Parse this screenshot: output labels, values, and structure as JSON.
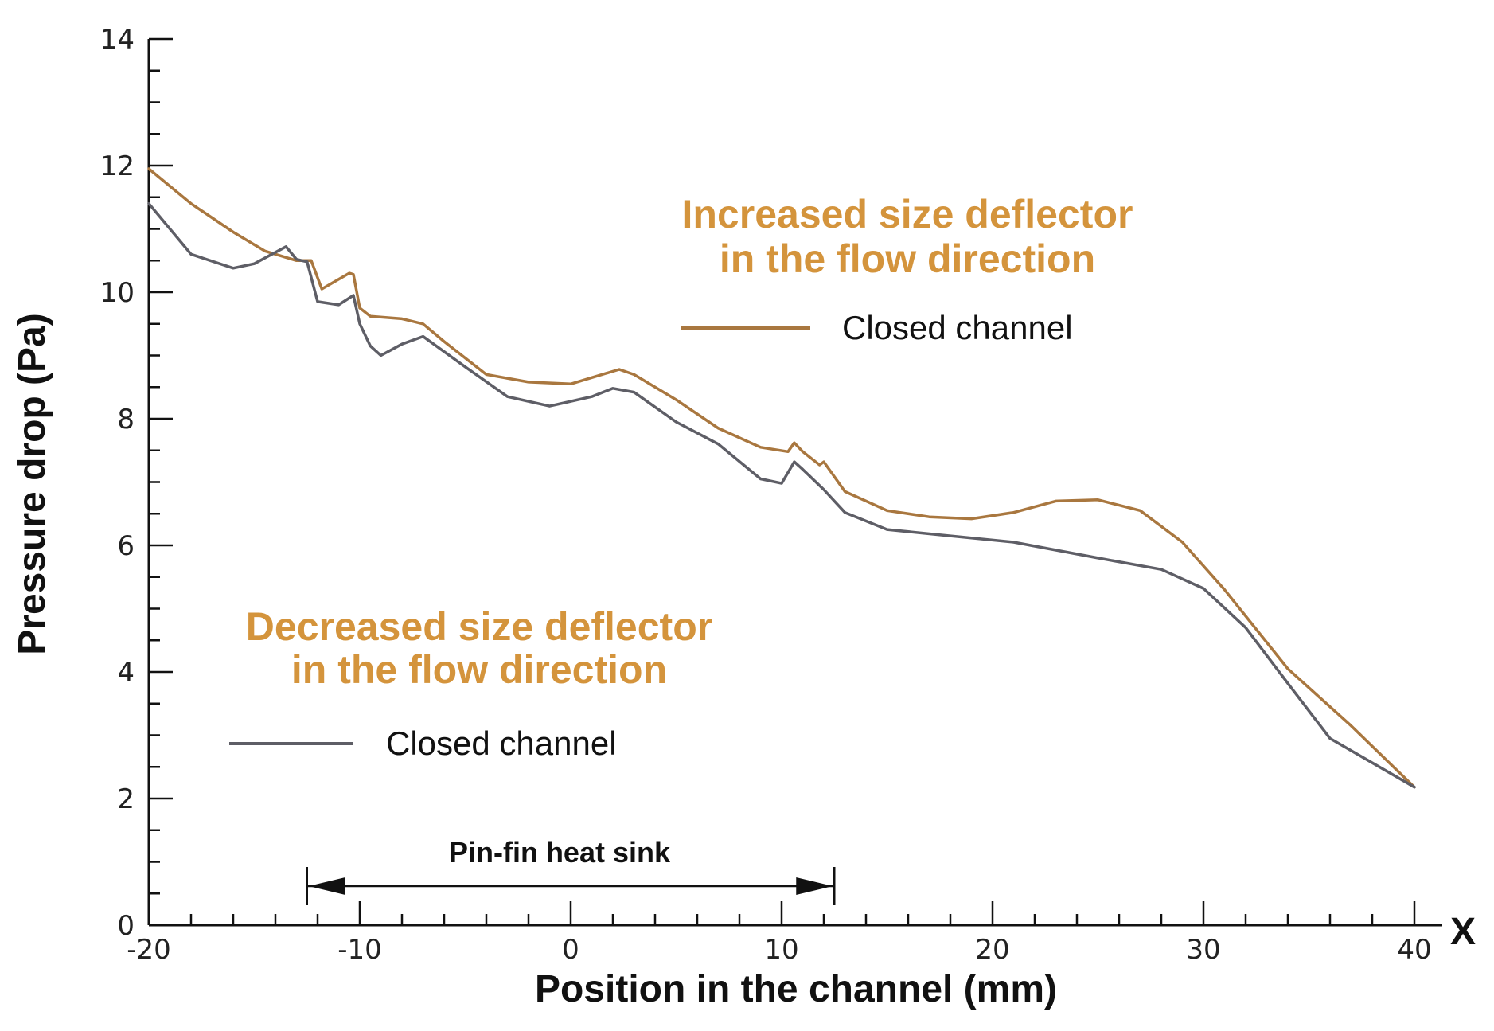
{
  "chart_data": {
    "type": "line",
    "xlabel": "Position in the channel (mm)",
    "ylabel": "Pressure drop (Pa)",
    "x_axis_marker": "X",
    "xlim": [
      -20,
      40
    ],
    "ylim": [
      0,
      14
    ],
    "x_ticks": [
      -20,
      -10,
      0,
      10,
      20,
      30,
      40
    ],
    "y_ticks": [
      0,
      2,
      4,
      6,
      8,
      10,
      12,
      14
    ],
    "x_tick_labels": [
      "-20",
      "-10",
      "0",
      "10",
      "20",
      "30",
      "40"
    ],
    "y_tick_labels": [
      "0",
      "2",
      "4",
      "6",
      "8",
      "10",
      "12",
      "14"
    ],
    "grid": false,
    "colors": {
      "increased": "#a9773f",
      "decreased": "#5e5e66",
      "annotation": "#d4943c",
      "axis": "#111111"
    },
    "annotations": [
      {
        "id": "increased",
        "lines": [
          "Increased size deflector",
          "in the flow direction"
        ],
        "legend_label": "Closed channel"
      },
      {
        "id": "decreased",
        "lines": [
          "Decreased size deflector",
          "in the flow direction"
        ],
        "legend_label": "Closed channel"
      }
    ],
    "span_annotation": {
      "label": "Pin-fin heat sink",
      "x_start": -12.5,
      "x_end": 12.5
    },
    "series": [
      {
        "name": "Increased size deflector in the flow direction — Closed channel",
        "color_key": "increased",
        "x": [
          -20,
          -18,
          -16,
          -14.5,
          -13,
          -12.3,
          -11.8,
          -10.5,
          -10.3,
          -10,
          -9.5,
          -8,
          -7,
          -6,
          -4,
          -2,
          0,
          1,
          2.3,
          3,
          5,
          7,
          9,
          10.3,
          10.6,
          11,
          11.8,
          12,
          13,
          15,
          17,
          19,
          21,
          23,
          25,
          27,
          29,
          31,
          34,
          37,
          40
        ],
        "y": [
          11.95,
          11.4,
          10.95,
          10.65,
          10.5,
          10.5,
          10.05,
          10.3,
          10.28,
          9.75,
          9.62,
          9.58,
          9.5,
          9.22,
          8.7,
          8.58,
          8.55,
          8.65,
          8.78,
          8.7,
          8.3,
          7.85,
          7.55,
          7.48,
          7.62,
          7.48,
          7.27,
          7.32,
          6.85,
          6.55,
          6.45,
          6.42,
          6.52,
          6.7,
          6.72,
          6.55,
          6.05,
          5.3,
          4.05,
          3.15,
          2.18
        ]
      },
      {
        "name": "Decreased size deflector in the flow direction — Closed channel",
        "color_key": "decreased",
        "x": [
          -20,
          -18,
          -16,
          -15,
          -13.5,
          -13,
          -12.5,
          -12,
          -11,
          -10.3,
          -10,
          -9.5,
          -9,
          -8,
          -7,
          -5,
          -3,
          -1,
          1,
          2,
          3,
          5,
          7,
          9,
          10,
          10.6,
          11,
          12,
          13,
          15,
          18,
          21,
          25,
          28,
          30,
          32,
          34,
          36,
          40
        ],
        "y": [
          11.4,
          10.6,
          10.38,
          10.45,
          10.72,
          10.52,
          10.48,
          9.85,
          9.8,
          9.95,
          9.5,
          9.15,
          9.0,
          9.18,
          9.3,
          8.82,
          8.35,
          8.2,
          8.35,
          8.48,
          8.42,
          7.95,
          7.6,
          7.05,
          6.98,
          7.32,
          7.2,
          6.88,
          6.52,
          6.25,
          6.15,
          6.05,
          5.8,
          5.62,
          5.32,
          4.7,
          3.82,
          2.95,
          2.18
        ]
      }
    ]
  }
}
